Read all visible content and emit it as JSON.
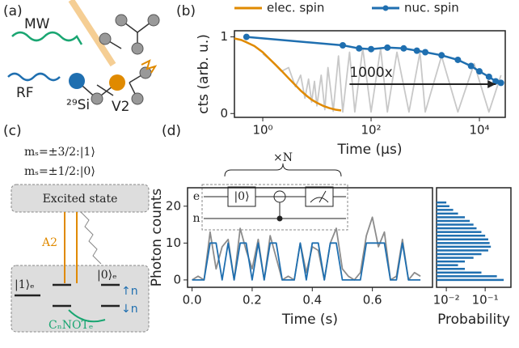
{
  "panel_labels": [
    "(a)",
    "(b)",
    "(c)",
    "(d)"
  ],
  "diagram_a": {
    "mw": "MW",
    "rf": "RF",
    "si": "²⁹Si",
    "v2": "V2"
  },
  "diagram_c": {
    "level_3_2": "mₛ=±3/2:|1⟩",
    "level_1_2": "mₛ=±1/2:|0⟩",
    "excited": "Excited state",
    "a2": "A2",
    "ket1": "|1⟩ₑ",
    "ket0": "|0⟩ₑ",
    "up": "↑n",
    "down": "↓n",
    "cnot": "CₙNOTₑ"
  },
  "circuit": {
    "repeat": "×N",
    "e": "e",
    "n": "n",
    "init": "|0⟩"
  },
  "chart_data": [
    {
      "type": "line",
      "xlabel": "Time (µs)",
      "ylabel": "cts (arb. u.)",
      "log_x": true,
      "xlim": [
        0.3,
        30000
      ],
      "ylim": [
        -0.05,
        1.08
      ],
      "xticks": [
        {
          "value": 1,
          "label": "10⁰"
        },
        {
          "value": 100,
          "label": "10²"
        },
        {
          "value": 10000,
          "label": "10⁴"
        }
      ],
      "yticks": [
        0,
        1
      ],
      "annotation": "1000x",
      "legend": "top",
      "series": [
        {
          "color": "#c8c8c8",
          "x": [
            1,
            1.5,
            2.2,
            3,
            4,
            5,
            6,
            7,
            8,
            9,
            10,
            12,
            14,
            16,
            20,
            25,
            30,
            40,
            50,
            70,
            100,
            150,
            200,
            300,
            500,
            800,
            1000,
            2000,
            4000,
            8000,
            15000,
            25000
          ],
          "values": [
            0.78,
            0.68,
            0.55,
            0.6,
            0.35,
            0.5,
            0.2,
            0.45,
            0.15,
            0.42,
            0.1,
            0.5,
            0.05,
            0.6,
            0.03,
            0.75,
            0.02,
            0.8,
            0.02,
            0.85,
            0.02,
            0.85,
            0.02,
            0.8,
            0.02,
            0.8,
            0.02,
            0.75,
            0.02,
            0.65,
            0.02,
            0.5
          ]
        },
        {
          "name": "elec. spin",
          "color": "#e08a00",
          "x": [
            0.3,
            0.4,
            0.5,
            0.7,
            1,
            1.3,
            1.7,
            2.2,
            3,
            4,
            5,
            6.5,
            8,
            10,
            13,
            17,
            22,
            28
          ],
          "values": [
            0.98,
            0.96,
            0.93,
            0.88,
            0.8,
            0.72,
            0.64,
            0.56,
            0.46,
            0.37,
            0.3,
            0.23,
            0.18,
            0.14,
            0.1,
            0.07,
            0.05,
            0.04
          ]
        },
        {
          "name": "nuc. spin",
          "color": "#1f6fb0",
          "x": [
            0.5,
            30,
            60,
            100,
            200,
            400,
            700,
            1000,
            2000,
            4000,
            7000,
            10000,
            15000,
            20000,
            25000
          ],
          "values": [
            1,
            0.89,
            0.85,
            0.84,
            0.86,
            0.85,
            0.82,
            0.8,
            0.76,
            0.7,
            0.62,
            0.55,
            0.48,
            0.42,
            0.4
          ],
          "markers": true
        }
      ]
    },
    {
      "type": "line",
      "xlabel": "Time (s)",
      "ylabel": "Photon counts",
      "xlim": [
        -0.015,
        0.8
      ],
      "ylim": [
        -2,
        25
      ],
      "xticks": [
        {
          "value": 0,
          "label": "0.0"
        },
        0.2,
        0.4,
        0.6
      ],
      "yticks": [
        0,
        10,
        20
      ],
      "series": [
        {
          "color": "#8c8c8c",
          "x": [
            0,
            0.02,
            0.04,
            0.06,
            0.08,
            0.1,
            0.12,
            0.14,
            0.16,
            0.18,
            0.2,
            0.22,
            0.24,
            0.26,
            0.28,
            0.3,
            0.32,
            0.34,
            0.36,
            0.38,
            0.4,
            0.42,
            0.44,
            0.46,
            0.48,
            0.5,
            0.52,
            0.54,
            0.56,
            0.58,
            0.6,
            0.62,
            0.64,
            0.66,
            0.68,
            0.7,
            0.72,
            0.74,
            0.76
          ],
          "values": [
            0,
            1,
            0,
            13,
            3,
            9,
            11,
            0,
            14,
            8,
            3,
            11,
            0,
            12,
            6,
            0,
            1,
            0,
            10,
            2,
            9,
            8,
            0,
            10,
            14,
            3,
            1,
            0,
            2,
            12,
            17,
            9,
            13,
            0,
            1,
            11,
            0,
            2,
            1
          ]
        },
        {
          "color": "#1f6fb0",
          "x": [
            0,
            0.02,
            0.04,
            0.06,
            0.08,
            0.1,
            0.12,
            0.14,
            0.16,
            0.18,
            0.2,
            0.22,
            0.24,
            0.26,
            0.28,
            0.3,
            0.32,
            0.34,
            0.36,
            0.38,
            0.4,
            0.42,
            0.44,
            0.46,
            0.48,
            0.5,
            0.52,
            0.54,
            0.56,
            0.58,
            0.6,
            0.62,
            0.64,
            0.66,
            0.68,
            0.7,
            0.72,
            0.74,
            0.76
          ],
          "values": [
            0,
            0,
            0,
            10,
            10,
            0,
            10,
            0,
            10,
            10,
            0,
            10,
            0,
            10,
            10,
            0,
            0,
            0,
            10,
            0,
            10,
            10,
            0,
            10,
            10,
            0,
            0,
            0,
            0,
            10,
            10,
            10,
            10,
            0,
            0,
            10,
            0,
            0,
            0
          ]
        }
      ]
    },
    {
      "type": "histogram",
      "xlabel": "Probability",
      "log_x": true,
      "xlim": [
        0.0056,
        0.46
      ],
      "ylim": [
        -2,
        25
      ],
      "xticks": [
        {
          "value": 0.01,
          "label": "10⁻²"
        },
        {
          "value": 0.1,
          "label": "10⁻¹"
        }
      ],
      "color": "#1f6fb0",
      "categories": [
        0,
        1,
        2,
        3,
        4,
        5,
        6,
        7,
        8,
        9,
        10,
        11,
        12,
        13,
        14,
        15,
        16,
        17,
        18,
        19,
        20,
        21
      ],
      "values": [
        0.3,
        0.2,
        0.08,
        0.03,
        0.02,
        0.03,
        0.05,
        0.08,
        0.12,
        0.14,
        0.13,
        0.12,
        0.1,
        0.08,
        0.06,
        0.05,
        0.04,
        0.03,
        0.02,
        0.015,
        0.012,
        0.01
      ]
    }
  ]
}
